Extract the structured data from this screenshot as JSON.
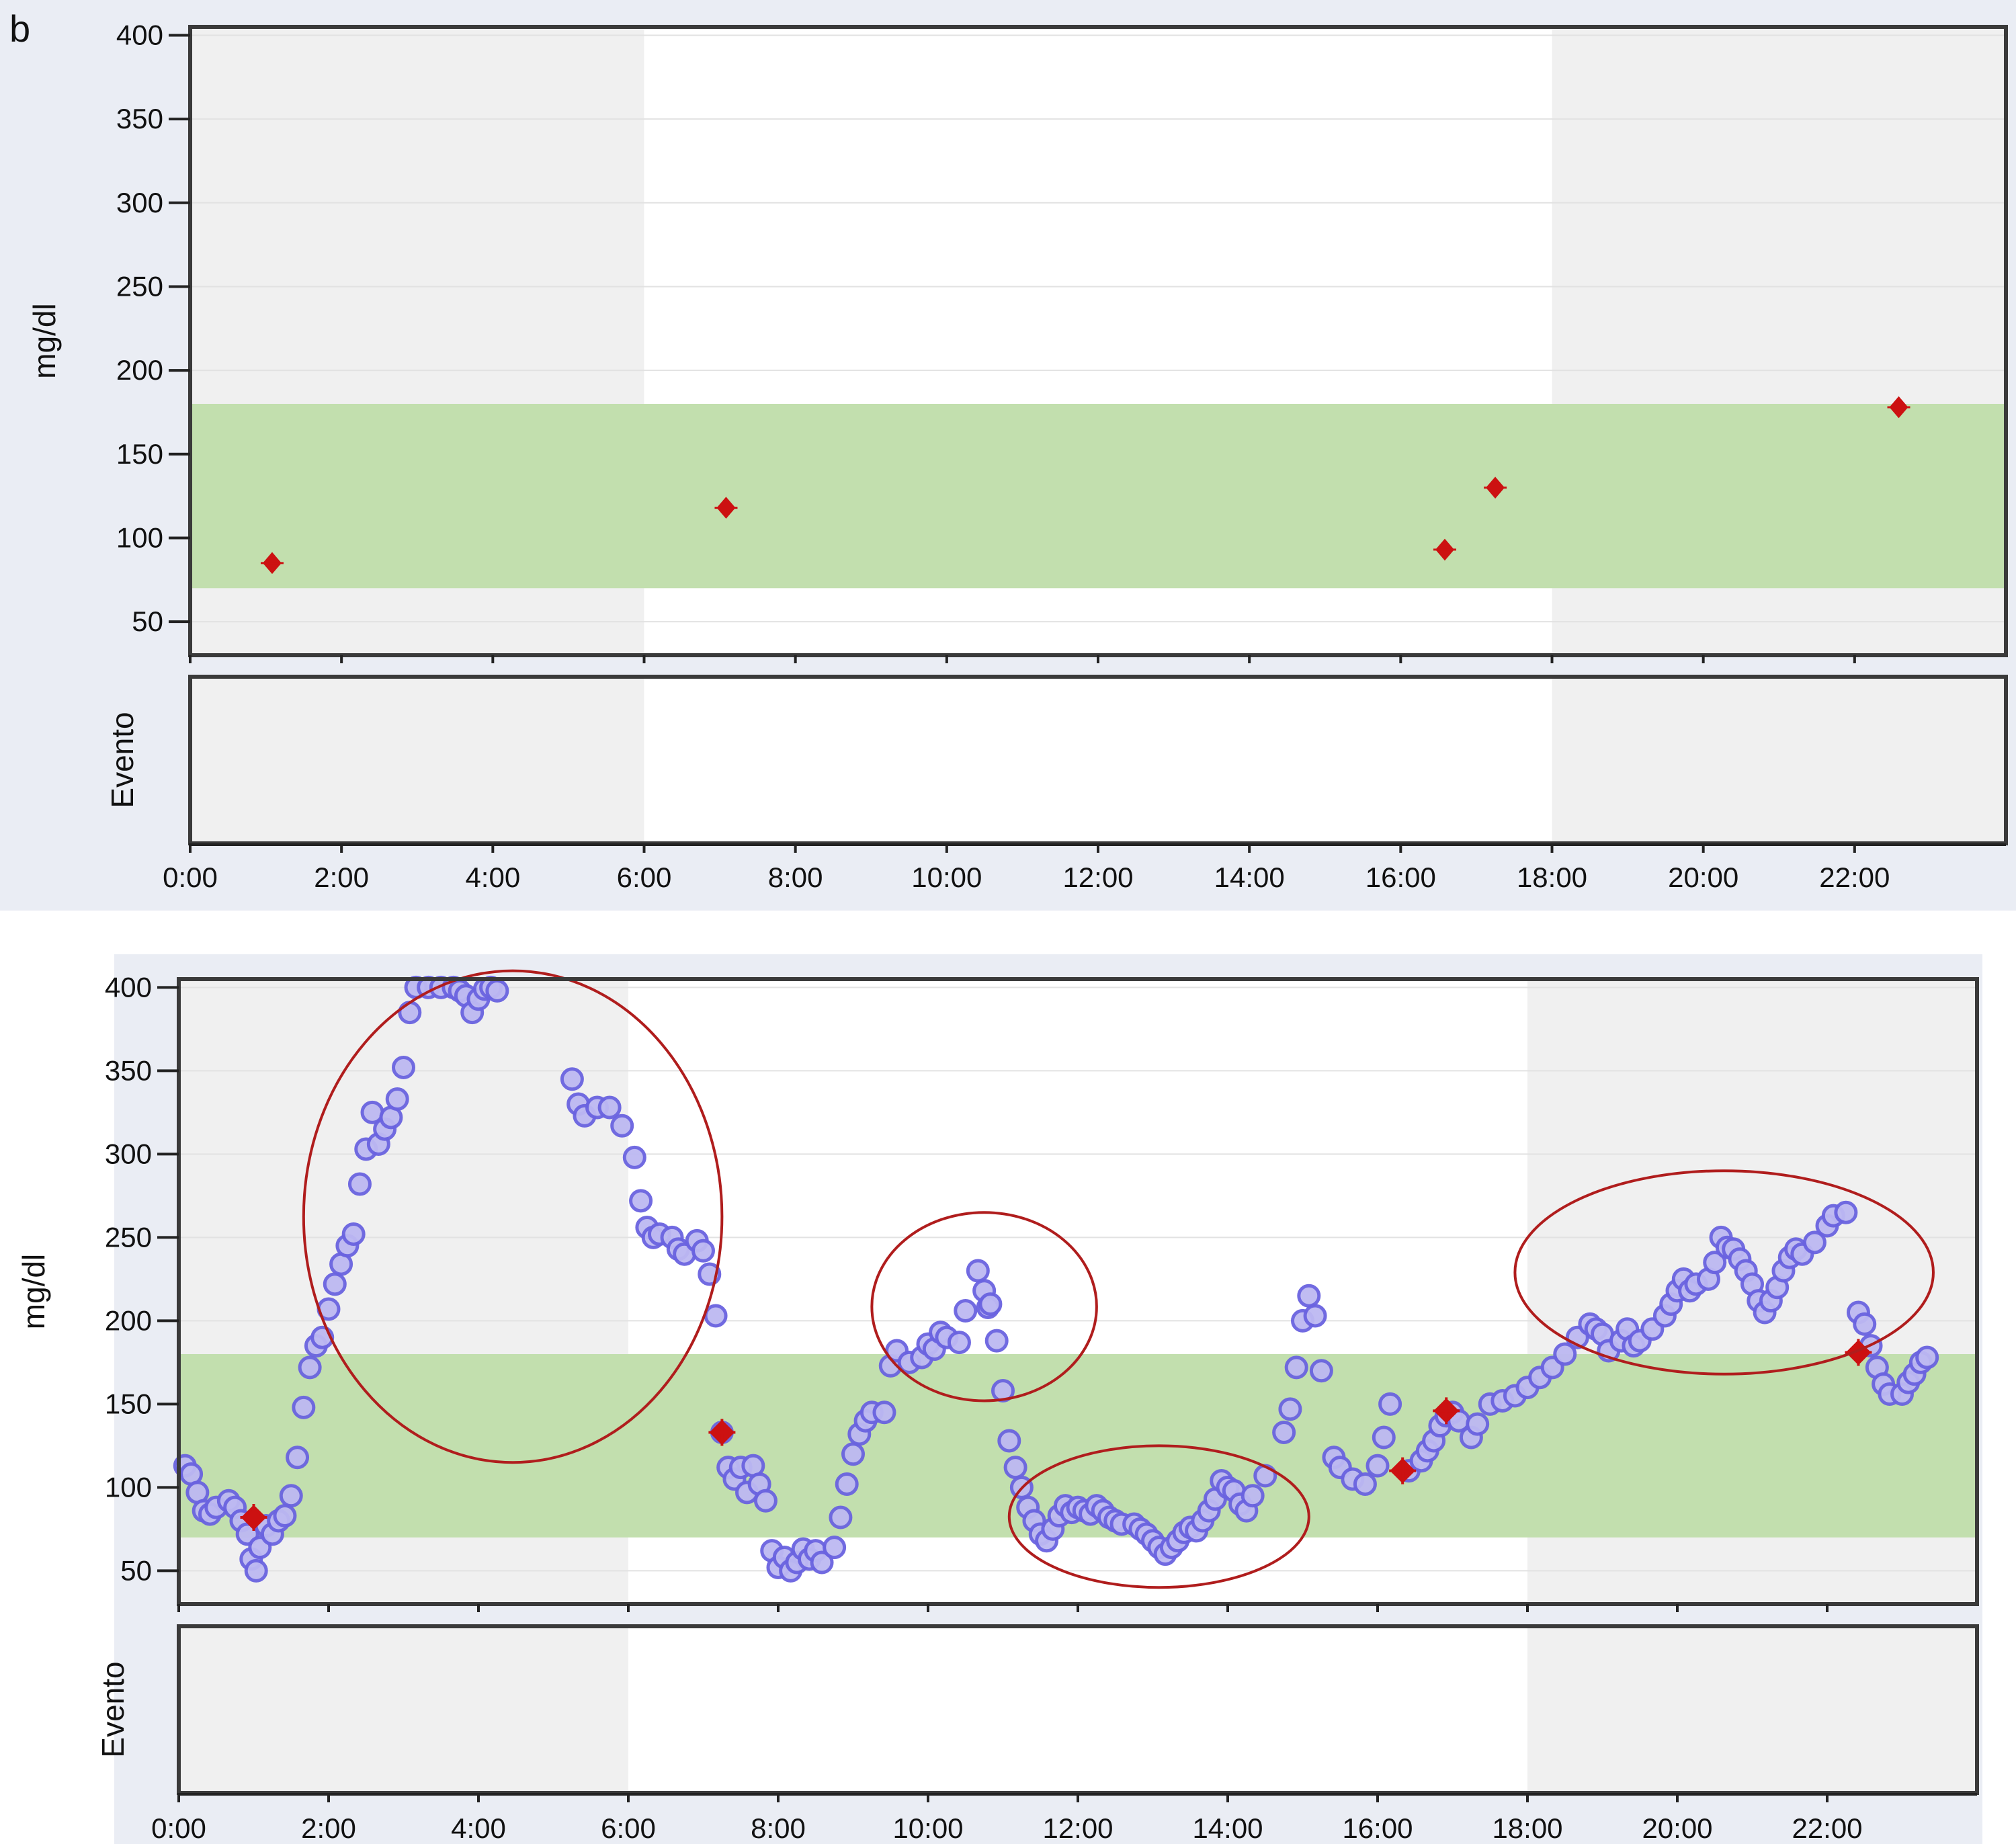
{
  "panel_letter": "b",
  "chart_data": [
    {
      "type": "scatter",
      "title": "",
      "ylabel": "mg/dl",
      "event_label": "Evento",
      "ylim": [
        30,
        405
      ],
      "xlim": [
        "0:00",
        "24:00"
      ],
      "y_ticks": [
        50,
        100,
        150,
        200,
        250,
        300,
        350,
        400
      ],
      "x_ticks": [
        "0:00",
        "2:00",
        "4:00",
        "6:00",
        "8:00",
        "10:00",
        "12:00",
        "14:00",
        "16:00",
        "18:00",
        "20:00",
        "22:00"
      ],
      "target_range": [
        70,
        180
      ],
      "night_shading": [
        [
          "0:00",
          "6:00"
        ],
        [
          "18:00",
          "24:00"
        ]
      ],
      "grid": "horizontal",
      "colors": {
        "target": "#c2dfae",
        "night": "#f0f0f0",
        "meter": "#cc1111",
        "frame": "#3a3a3a"
      },
      "meter_readings": [
        {
          "x": "1:05",
          "y": 85
        },
        {
          "x": "7:05",
          "y": 118
        },
        {
          "x": "16:35",
          "y": 93
        },
        {
          "x": "17:15",
          "y": 130
        },
        {
          "x": "22:35",
          "y": 178
        }
      ]
    },
    {
      "type": "scatter",
      "title": "",
      "ylabel": "mg/dl",
      "event_label": "Evento",
      "ylim": [
        30,
        405
      ],
      "xlim": [
        "0:00",
        "24:00"
      ],
      "y_ticks": [
        50,
        100,
        150,
        200,
        250,
        300,
        350,
        400
      ],
      "x_ticks": [
        "0:00",
        "2:00",
        "4:00",
        "6:00",
        "8:00",
        "10:00",
        "12:00",
        "14:00",
        "16:00",
        "18:00",
        "20:00",
        "22:00"
      ],
      "target_range": [
        70,
        180
      ],
      "night_shading": [
        [
          "0:00",
          "6:00"
        ],
        [
          "18:00",
          "24:00"
        ]
      ],
      "grid": "horizontal",
      "colors": {
        "target": "#c2dfae",
        "night": "#f0f0f0",
        "sensor": "#6a63e0",
        "meter": "#cc1111",
        "annotation": "#b01d1d",
        "frame": "#3a3a3a"
      },
      "sensor_readings": [
        {
          "x": "0:05",
          "y": 113
        },
        {
          "x": "0:10",
          "y": 108
        },
        {
          "x": "0:15",
          "y": 97
        },
        {
          "x": "0:20",
          "y": 86
        },
        {
          "x": "0:25",
          "y": 84
        },
        {
          "x": "0:30",
          "y": 88
        },
        {
          "x": "0:40",
          "y": 92
        },
        {
          "x": "0:45",
          "y": 88
        },
        {
          "x": "0:50",
          "y": 80
        },
        {
          "x": "0:55",
          "y": 72
        },
        {
          "x": "0:58",
          "y": 57
        },
        {
          "x": "1:02",
          "y": 50
        },
        {
          "x": "1:05",
          "y": 64
        },
        {
          "x": "1:10",
          "y": 77
        },
        {
          "x": "1:15",
          "y": 72
        },
        {
          "x": "1:20",
          "y": 80
        },
        {
          "x": "1:25",
          "y": 83
        },
        {
          "x": "1:30",
          "y": 95
        },
        {
          "x": "1:35",
          "y": 118
        },
        {
          "x": "1:40",
          "y": 148
        },
        {
          "x": "1:45",
          "y": 172
        },
        {
          "x": "1:50",
          "y": 185
        },
        {
          "x": "1:55",
          "y": 190
        },
        {
          "x": "2:00",
          "y": 207
        },
        {
          "x": "2:05",
          "y": 222
        },
        {
          "x": "2:10",
          "y": 234
        },
        {
          "x": "2:15",
          "y": 245
        },
        {
          "x": "2:20",
          "y": 252
        },
        {
          "x": "2:25",
          "y": 282
        },
        {
          "x": "2:30",
          "y": 303
        },
        {
          "x": "2:35",
          "y": 325
        },
        {
          "x": "2:40",
          "y": 306
        },
        {
          "x": "2:45",
          "y": 315
        },
        {
          "x": "2:50",
          "y": 322
        },
        {
          "x": "2:55",
          "y": 333
        },
        {
          "x": "3:00",
          "y": 352
        },
        {
          "x": "3:05",
          "y": 385
        },
        {
          "x": "3:10",
          "y": 400
        },
        {
          "x": "3:20",
          "y": 400
        },
        {
          "x": "3:30",
          "y": 400
        },
        {
          "x": "3:40",
          "y": 400
        },
        {
          "x": "3:45",
          "y": 398
        },
        {
          "x": "3:50",
          "y": 395
        },
        {
          "x": "3:55",
          "y": 385
        },
        {
          "x": "4:00",
          "y": 393
        },
        {
          "x": "4:05",
          "y": 399
        },
        {
          "x": "4:10",
          "y": 400
        },
        {
          "x": "4:15",
          "y": 398
        },
        {
          "x": "5:15",
          "y": 345
        },
        {
          "x": "5:20",
          "y": 330
        },
        {
          "x": "5:25",
          "y": 323
        },
        {
          "x": "5:35",
          "y": 328
        },
        {
          "x": "5:45",
          "y": 328
        },
        {
          "x": "5:55",
          "y": 317
        },
        {
          "x": "6:05",
          "y": 298
        },
        {
          "x": "6:10",
          "y": 272
        },
        {
          "x": "6:15",
          "y": 256
        },
        {
          "x": "6:20",
          "y": 250
        },
        {
          "x": "6:25",
          "y": 252
        },
        {
          "x": "6:35",
          "y": 250
        },
        {
          "x": "6:40",
          "y": 243
        },
        {
          "x": "6:45",
          "y": 240
        },
        {
          "x": "6:55",
          "y": 248
        },
        {
          "x": "7:00",
          "y": 242
        },
        {
          "x": "7:05",
          "y": 228
        },
        {
          "x": "7:10",
          "y": 203
        },
        {
          "x": "7:15",
          "y": 133
        },
        {
          "x": "7:20",
          "y": 112
        },
        {
          "x": "7:25",
          "y": 105
        },
        {
          "x": "7:30",
          "y": 112
        },
        {
          "x": "7:35",
          "y": 97
        },
        {
          "x": "7:40",
          "y": 113
        },
        {
          "x": "7:45",
          "y": 102
        },
        {
          "x": "7:50",
          "y": 92
        },
        {
          "x": "7:55",
          "y": 62
        },
        {
          "x": "8:00",
          "y": 52
        },
        {
          "x": "8:05",
          "y": 58
        },
        {
          "x": "8:10",
          "y": 50
        },
        {
          "x": "8:15",
          "y": 55
        },
        {
          "x": "8:20",
          "y": 63
        },
        {
          "x": "8:25",
          "y": 57
        },
        {
          "x": "8:30",
          "y": 62
        },
        {
          "x": "8:35",
          "y": 55
        },
        {
          "x": "8:45",
          "y": 64
        },
        {
          "x": "8:50",
          "y": 82
        },
        {
          "x": "8:55",
          "y": 102
        },
        {
          "x": "9:00",
          "y": 120
        },
        {
          "x": "9:05",
          "y": 132
        },
        {
          "x": "9:10",
          "y": 140
        },
        {
          "x": "9:15",
          "y": 145
        },
        {
          "x": "9:25",
          "y": 145
        },
        {
          "x": "9:30",
          "y": 173
        },
        {
          "x": "9:35",
          "y": 182
        },
        {
          "x": "9:45",
          "y": 175
        },
        {
          "x": "9:55",
          "y": 178
        },
        {
          "x": "10:00",
          "y": 186
        },
        {
          "x": "10:05",
          "y": 183
        },
        {
          "x": "10:10",
          "y": 193
        },
        {
          "x": "10:15",
          "y": 190
        },
        {
          "x": "10:25",
          "y": 187
        },
        {
          "x": "10:30",
          "y": 206
        },
        {
          "x": "10:40",
          "y": 230
        },
        {
          "x": "10:45",
          "y": 218
        },
        {
          "x": "10:48",
          "y": 208
        },
        {
          "x": "10:50",
          "y": 210
        },
        {
          "x": "10:55",
          "y": 188
        },
        {
          "x": "11:00",
          "y": 158
        },
        {
          "x": "11:05",
          "y": 128
        },
        {
          "x": "11:10",
          "y": 112
        },
        {
          "x": "11:15",
          "y": 100
        },
        {
          "x": "11:20",
          "y": 88
        },
        {
          "x": "11:25",
          "y": 80
        },
        {
          "x": "11:30",
          "y": 72
        },
        {
          "x": "11:35",
          "y": 68
        },
        {
          "x": "11:40",
          "y": 75
        },
        {
          "x": "11:45",
          "y": 83
        },
        {
          "x": "11:50",
          "y": 89
        },
        {
          "x": "11:55",
          "y": 85
        },
        {
          "x": "12:00",
          "y": 88
        },
        {
          "x": "12:05",
          "y": 86
        },
        {
          "x": "12:10",
          "y": 84
        },
        {
          "x": "12:15",
          "y": 89
        },
        {
          "x": "12:20",
          "y": 86
        },
        {
          "x": "12:25",
          "y": 82
        },
        {
          "x": "12:30",
          "y": 80
        },
        {
          "x": "12:35",
          "y": 78
        },
        {
          "x": "12:45",
          "y": 78
        },
        {
          "x": "12:50",
          "y": 75
        },
        {
          "x": "12:55",
          "y": 72
        },
        {
          "x": "13:00",
          "y": 68
        },
        {
          "x": "13:05",
          "y": 64
        },
        {
          "x": "13:10",
          "y": 60
        },
        {
          "x": "13:15",
          "y": 64
        },
        {
          "x": "13:20",
          "y": 68
        },
        {
          "x": "13:25",
          "y": 73
        },
        {
          "x": "13:30",
          "y": 76
        },
        {
          "x": "13:35",
          "y": 74
        },
        {
          "x": "13:40",
          "y": 80
        },
        {
          "x": "13:45",
          "y": 86
        },
        {
          "x": "13:50",
          "y": 93
        },
        {
          "x": "13:55",
          "y": 104
        },
        {
          "x": "14:00",
          "y": 100
        },
        {
          "x": "14:05",
          "y": 98
        },
        {
          "x": "14:10",
          "y": 90
        },
        {
          "x": "14:15",
          "y": 86
        },
        {
          "x": "14:20",
          "y": 95
        },
        {
          "x": "14:30",
          "y": 107
        },
        {
          "x": "14:45",
          "y": 133
        },
        {
          "x": "14:50",
          "y": 147
        },
        {
          "x": "14:55",
          "y": 172
        },
        {
          "x": "15:00",
          "y": 200
        },
        {
          "x": "15:05",
          "y": 215
        },
        {
          "x": "15:10",
          "y": 203
        },
        {
          "x": "15:15",
          "y": 170
        },
        {
          "x": "15:25",
          "y": 118
        },
        {
          "x": "15:30",
          "y": 112
        },
        {
          "x": "15:40",
          "y": 105
        },
        {
          "x": "15:50",
          "y": 102
        },
        {
          "x": "16:00",
          "y": 113
        },
        {
          "x": "16:05",
          "y": 130
        },
        {
          "x": "16:10",
          "y": 150
        },
        {
          "x": "16:25",
          "y": 110
        },
        {
          "x": "16:35",
          "y": 116
        },
        {
          "x": "16:40",
          "y": 122
        },
        {
          "x": "16:45",
          "y": 128
        },
        {
          "x": "16:50",
          "y": 137
        },
        {
          "x": "16:55",
          "y": 143
        },
        {
          "x": "17:00",
          "y": 145
        },
        {
          "x": "17:05",
          "y": 140
        },
        {
          "x": "17:15",
          "y": 130
        },
        {
          "x": "17:20",
          "y": 138
        },
        {
          "x": "17:30",
          "y": 150
        },
        {
          "x": "17:40",
          "y": 152
        },
        {
          "x": "17:50",
          "y": 155
        },
        {
          "x": "18:00",
          "y": 160
        },
        {
          "x": "18:10",
          "y": 166
        },
        {
          "x": "18:20",
          "y": 172
        },
        {
          "x": "18:30",
          "y": 180
        },
        {
          "x": "18:40",
          "y": 190
        },
        {
          "x": "18:50",
          "y": 198
        },
        {
          "x": "18:55",
          "y": 195
        },
        {
          "x": "19:00",
          "y": 192
        },
        {
          "x": "19:05",
          "y": 182
        },
        {
          "x": "19:15",
          "y": 188
        },
        {
          "x": "19:20",
          "y": 195
        },
        {
          "x": "19:25",
          "y": 185
        },
        {
          "x": "19:30",
          "y": 188
        },
        {
          "x": "19:40",
          "y": 195
        },
        {
          "x": "19:50",
          "y": 203
        },
        {
          "x": "19:55",
          "y": 210
        },
        {
          "x": "20:00",
          "y": 218
        },
        {
          "x": "20:05",
          "y": 225
        },
        {
          "x": "20:10",
          "y": 218
        },
        {
          "x": "20:15",
          "y": 222
        },
        {
          "x": "20:25",
          "y": 225
        },
        {
          "x": "20:30",
          "y": 235
        },
        {
          "x": "20:35",
          "y": 250
        },
        {
          "x": "20:40",
          "y": 244
        },
        {
          "x": "20:45",
          "y": 243
        },
        {
          "x": "20:50",
          "y": 237
        },
        {
          "x": "20:55",
          "y": 230
        },
        {
          "x": "21:00",
          "y": 222
        },
        {
          "x": "21:05",
          "y": 212
        },
        {
          "x": "21:10",
          "y": 205
        },
        {
          "x": "21:15",
          "y": 212
        },
        {
          "x": "21:20",
          "y": 220
        },
        {
          "x": "21:25",
          "y": 230
        },
        {
          "x": "21:30",
          "y": 238
        },
        {
          "x": "21:35",
          "y": 243
        },
        {
          "x": "21:40",
          "y": 240
        },
        {
          "x": "21:50",
          "y": 247
        },
        {
          "x": "22:00",
          "y": 257
        },
        {
          "x": "22:05",
          "y": 263
        },
        {
          "x": "22:15",
          "y": 265
        },
        {
          "x": "22:25",
          "y": 205
        },
        {
          "x": "22:30",
          "y": 198
        },
        {
          "x": "22:35",
          "y": 185
        },
        {
          "x": "22:40",
          "y": 172
        },
        {
          "x": "22:45",
          "y": 162
        },
        {
          "x": "22:50",
          "y": 156
        },
        {
          "x": "23:00",
          "y": 156
        },
        {
          "x": "23:05",
          "y": 163
        },
        {
          "x": "23:10",
          "y": 168
        },
        {
          "x": "23:15",
          "y": 175
        },
        {
          "x": "23:20",
          "y": 178
        }
      ],
      "meter_readings": [
        {
          "x": "1:00",
          "y": 82
        },
        {
          "x": "7:15",
          "y": 133
        },
        {
          "x": "16:20",
          "y": 110
        },
        {
          "x": "16:55",
          "y": 146
        },
        {
          "x": "22:25",
          "y": 181
        }
      ],
      "annotations": [
        {
          "shape": "ellipse",
          "x_range": [
            "1:40",
            "7:15"
          ],
          "y_range": [
            115,
            410
          ]
        },
        {
          "shape": "ellipse",
          "x_range": [
            "9:15",
            "12:15"
          ],
          "y_range": [
            152,
            265
          ]
        },
        {
          "shape": "ellipse",
          "x_range": [
            "11:05",
            "15:05"
          ],
          "y_range": [
            40,
            125
          ]
        },
        {
          "shape": "ellipse",
          "x_range": [
            "17:50",
            "23:25"
          ],
          "y_range": [
            168,
            290
          ]
        }
      ]
    }
  ]
}
